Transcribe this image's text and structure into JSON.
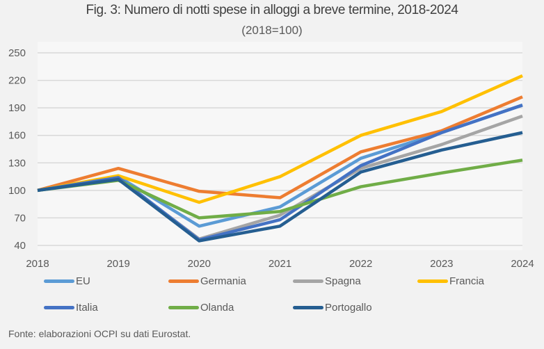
{
  "chart_data": {
    "type": "line",
    "title": "Fig. 3: Numero di notti spese in alloggi a breve termine, 2018-2024",
    "subtitle": "(2018=100)",
    "xlabel": "",
    "ylabel": "",
    "x": [
      "2018",
      "2019",
      "2020",
      "2021",
      "2022",
      "2023",
      "2024"
    ],
    "ylim": [
      40,
      250
    ],
    "yticks": [
      40,
      70,
      100,
      130,
      160,
      190,
      220,
      250
    ],
    "grid": true,
    "legend_position": "bottom",
    "series": [
      {
        "name": "EU",
        "color": "#5b9bd5",
        "values": [
          100,
          115,
          61,
          82,
          135,
          163,
          193
        ]
      },
      {
        "name": "Germania",
        "color": "#ed7d31",
        "values": [
          100,
          124,
          99,
          92,
          142,
          165,
          202
        ]
      },
      {
        "name": "Spagna",
        "color": "#a5a5a5",
        "values": [
          100,
          113,
          47,
          73,
          124,
          150,
          181
        ]
      },
      {
        "name": "Francia",
        "color": "#ffc000",
        "values": [
          100,
          116,
          87,
          115,
          160,
          186,
          225
        ]
      },
      {
        "name": "Italia",
        "color": "#4472c4",
        "values": [
          100,
          114,
          46,
          68,
          127,
          163,
          193
        ]
      },
      {
        "name": "Olanda",
        "color": "#70ad47",
        "values": [
          100,
          111,
          70,
          77,
          104,
          119,
          133
        ]
      },
      {
        "name": "Portogallo",
        "color": "#255e91",
        "values": [
          100,
          112,
          45,
          61,
          120,
          144,
          163
        ]
      }
    ]
  },
  "source": "Fonte: elaborazioni OCPI su dati Eurostat."
}
